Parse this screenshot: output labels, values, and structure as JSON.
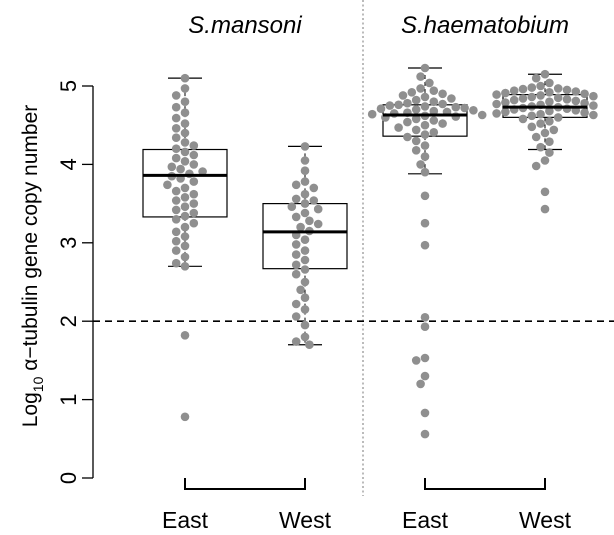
{
  "chart_data": {
    "type": "box-plot with beeswarm points",
    "ylabel_prefix": "Log",
    "ylabel_sub": "10",
    "ylabel_rest": " α−tubulin gene copy number",
    "ylim": [
      0,
      5
    ],
    "y_ticks": [
      "0",
      "1",
      "2",
      "3",
      "4",
      "5"
    ],
    "reference_line": 2,
    "grid": false,
    "groups": [
      {
        "title": "S.mansoni",
        "categories": [
          "East",
          "West"
        ]
      },
      {
        "title": "S.haematobium",
        "categories": [
          "East",
          "West"
        ]
      }
    ],
    "colors": {
      "points": "#8f8f8f",
      "box": "#000000",
      "median": "#000000"
    },
    "boxes": [
      {
        "species": "S.mansoni",
        "region": "East",
        "whisker_low": 2.7,
        "q1": 3.33,
        "median": 3.86,
        "q3": 4.19,
        "whisker_high": 5.1,
        "points": [
          5.1,
          4.97,
          4.88,
          4.8,
          4.73,
          4.66,
          4.59,
          4.52,
          4.46,
          4.4,
          4.34,
          4.28,
          4.24,
          4.2,
          4.16,
          4.12,
          4.08,
          4.04,
          4.0,
          3.97,
          3.94,
          3.91,
          3.88,
          3.85,
          3.82,
          3.78,
          3.74,
          3.7,
          3.66,
          3.62,
          3.58,
          3.54,
          3.5,
          3.46,
          3.42,
          3.38,
          3.34,
          3.3,
          3.25,
          3.2,
          3.14,
          3.08,
          3.02,
          2.96,
          2.9,
          2.82,
          2.74,
          2.7,
          1.82,
          0.78
        ]
      },
      {
        "species": "S.mansoni",
        "region": "West",
        "whisker_low": 1.7,
        "q1": 2.67,
        "median": 3.14,
        "q3": 3.5,
        "whisker_high": 4.23,
        "points": [
          4.23,
          4.05,
          3.92,
          3.78,
          3.74,
          3.7,
          3.62,
          3.56,
          3.54,
          3.5,
          3.46,
          3.43,
          3.38,
          3.33,
          3.28,
          3.24,
          3.2,
          3.15,
          3.1,
          3.04,
          2.98,
          2.9,
          2.85,
          2.78,
          2.72,
          2.66,
          2.6,
          2.5,
          2.4,
          2.3,
          2.22,
          2.15,
          2.06,
          1.95,
          1.8,
          1.74,
          1.7
        ]
      },
      {
        "species": "S.haematobium",
        "region": "East",
        "whisker_low": 3.88,
        "q1": 4.36,
        "median": 4.63,
        "q3": 4.76,
        "whisker_high": 5.23,
        "points": [
          5.23,
          5.12,
          5.04,
          4.97,
          4.94,
          4.92,
          4.9,
          4.88,
          4.86,
          4.84,
          4.82,
          4.8,
          4.78,
          4.77,
          4.76,
          4.75,
          4.74,
          4.73,
          4.72,
          4.71,
          4.7,
          4.69,
          4.68,
          4.67,
          4.66,
          4.65,
          4.64,
          4.63,
          4.62,
          4.61,
          4.6,
          4.58,
          4.56,
          4.54,
          4.52,
          4.5,
          4.47,
          4.44,
          4.41,
          4.38,
          4.35,
          4.3,
          4.24,
          4.18,
          4.1,
          4.0,
          3.9,
          3.6,
          3.25,
          2.97,
          2.05,
          1.93,
          1.53,
          1.5,
          1.3,
          1.2,
          0.83,
          0.56
        ]
      },
      {
        "species": "S.haematobium",
        "region": "West",
        "whisker_low": 4.19,
        "q1": 4.6,
        "median": 4.73,
        "q3": 4.89,
        "whisker_high": 5.15,
        "points": [
          5.15,
          5.1,
          5.04,
          5.0,
          4.98,
          4.97,
          4.96,
          4.95,
          4.94,
          4.93,
          4.92,
          4.91,
          4.9,
          4.89,
          4.88,
          4.87,
          4.86,
          4.85,
          4.84,
          4.83,
          4.82,
          4.81,
          4.8,
          4.79,
          4.78,
          4.77,
          4.76,
          4.75,
          4.74,
          4.73,
          4.72,
          4.71,
          4.7,
          4.69,
          4.68,
          4.67,
          4.66,
          4.65,
          4.64,
          4.63,
          4.62,
          4.6,
          4.58,
          4.55,
          4.52,
          4.48,
          4.44,
          4.4,
          4.35,
          4.29,
          4.22,
          4.15,
          4.05,
          3.98,
          3.65,
          3.43
        ]
      }
    ]
  }
}
